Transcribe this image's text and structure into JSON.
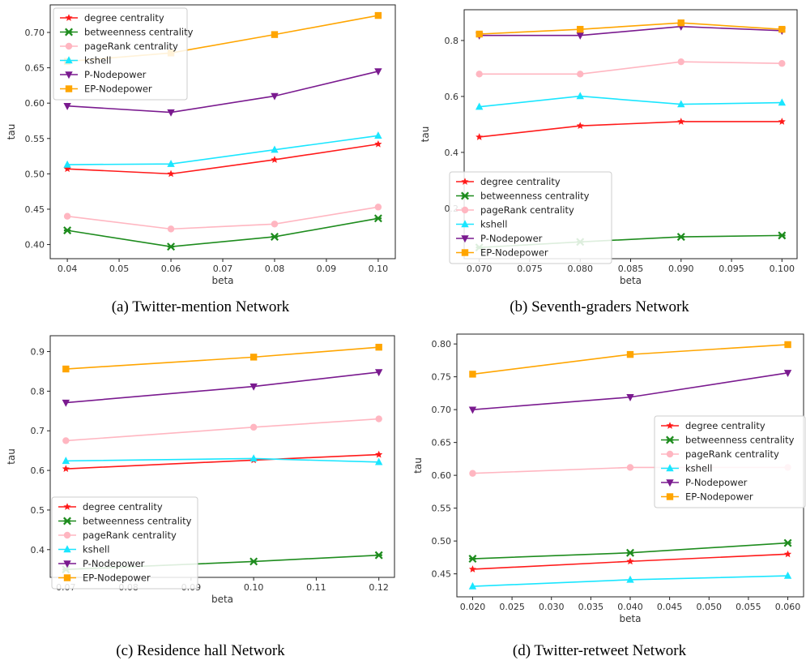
{
  "figure": {
    "captions": [
      "(a) Twitter-mention Network",
      "(b) Seventh-graders Network",
      "(c) Residence hall Network",
      "(d) Twitter-retweet Network"
    ]
  },
  "series_style": [
    {
      "name": "degree centrality",
      "color": "#ff1a1a",
      "marker": "star"
    },
    {
      "name": "betweenness centrality",
      "color": "#1e8c1e",
      "marker": "x"
    },
    {
      "name": "pageRank centrality",
      "color": "#ffb6c1",
      "marker": "circle"
    },
    {
      "name": "kshell",
      "color": "#1ae6ff",
      "marker": "triangle-up"
    },
    {
      "name": "P-Nodepower",
      "color": "#7a1a8f",
      "marker": "triangle-down"
    },
    {
      "name": "EP-Nodepower",
      "color": "#ffa500",
      "marker": "square"
    }
  ],
  "chart_data": [
    {
      "type": "line",
      "caption": "(a) Twitter-mention Network",
      "xlabel": "beta",
      "ylabel": "tau",
      "x": [
        0.04,
        0.06,
        0.08,
        0.1
      ],
      "xticks": [
        "0.04",
        "0.05",
        "0.06",
        "0.07",
        "0.08",
        "0.09",
        "0.10"
      ],
      "xtick_values": [
        0.04,
        0.05,
        0.06,
        0.07,
        0.08,
        0.09,
        0.1
      ],
      "yticks": [
        "0.40",
        "0.45",
        "0.50",
        "0.55",
        "0.60",
        "0.65",
        "0.70"
      ],
      "ytick_values": [
        0.4,
        0.45,
        0.5,
        0.55,
        0.6,
        0.65,
        0.7
      ],
      "xlim": [
        0.0367,
        0.1033
      ],
      "ylim": [
        0.38,
        0.739
      ],
      "legend": "top-left",
      "series": [
        {
          "name": "degree centrality",
          "values": [
            0.507,
            0.5,
            0.52,
            0.542
          ]
        },
        {
          "name": "betweenness centrality",
          "values": [
            0.42,
            0.397,
            0.411,
            0.437
          ]
        },
        {
          "name": "pageRank centrality",
          "values": [
            0.44,
            0.422,
            0.429,
            0.453
          ]
        },
        {
          "name": "kshell",
          "values": [
            0.513,
            0.514,
            0.534,
            0.554
          ]
        },
        {
          "name": "P-Nodepower",
          "values": [
            0.596,
            0.587,
            0.61,
            0.645
          ]
        },
        {
          "name": "EP-Nodepower",
          "values": [
            0.659,
            0.671,
            0.697,
            0.724
          ]
        }
      ]
    },
    {
      "type": "line",
      "caption": "(b) Seventh-graders Network",
      "xlabel": "beta",
      "ylabel": "tau",
      "x": [
        0.07,
        0.08,
        0.09,
        0.1
      ],
      "xticks": [
        "0.070",
        "0.075",
        "0.080",
        "0.085",
        "0.090",
        "0.095",
        "0.100"
      ],
      "xtick_values": [
        0.07,
        0.075,
        0.08,
        0.085,
        0.09,
        0.095,
        0.1
      ],
      "yticks": [
        "0.2",
        "0.4",
        "0.6",
        "0.8"
      ],
      "ytick_values": [
        0.2,
        0.4,
        0.6,
        0.8
      ],
      "xlim": [
        0.0685,
        0.1015
      ],
      "ylim": [
        0.02,
        0.91
      ],
      "legend": "lower-left",
      "series": [
        {
          "name": "degree centrality",
          "values": [
            0.455,
            0.495,
            0.51,
            0.51
          ]
        },
        {
          "name": "betweenness centrality",
          "values": [
            0.06,
            0.08,
            0.098,
            0.103
          ]
        },
        {
          "name": "pageRank centrality",
          "values": [
            0.68,
            0.68,
            0.724,
            0.718
          ]
        },
        {
          "name": "kshell",
          "values": [
            0.563,
            0.601,
            0.572,
            0.578
          ]
        },
        {
          "name": "P-Nodepower",
          "values": [
            0.818,
            0.818,
            0.85,
            0.835
          ]
        },
        {
          "name": "EP-Nodepower",
          "values": [
            0.823,
            0.84,
            0.863,
            0.84
          ]
        }
      ]
    },
    {
      "type": "line",
      "caption": "(c) Residence hall Network",
      "xlabel": "beta",
      "ylabel": "tau",
      "x": [
        0.07,
        0.1,
        0.12
      ],
      "xticks": [
        "0.07",
        "0.08",
        "0.09",
        "0.10",
        "0.11",
        "0.12"
      ],
      "xtick_values": [
        0.07,
        0.08,
        0.09,
        0.1,
        0.11,
        0.12
      ],
      "yticks": [
        "0.4",
        "0.5",
        "0.6",
        "0.7",
        "0.8",
        "0.9"
      ],
      "ytick_values": [
        0.4,
        0.5,
        0.6,
        0.7,
        0.8,
        0.9
      ],
      "xlim": [
        0.0675,
        0.1225
      ],
      "ylim": [
        0.33,
        0.94
      ],
      "legend": "lower-left",
      "series": [
        {
          "name": "degree centrality",
          "values": [
            0.604,
            0.626,
            0.64
          ]
        },
        {
          "name": "betweenness centrality",
          "values": [
            0.35,
            0.37,
            0.386
          ]
        },
        {
          "name": "pageRank centrality",
          "values": [
            0.675,
            0.709,
            0.73
          ]
        },
        {
          "name": "kshell",
          "values": [
            0.624,
            0.63,
            0.621
          ]
        },
        {
          "name": "P-Nodepower",
          "values": [
            0.771,
            0.812,
            0.848
          ]
        },
        {
          "name": "EP-Nodepower",
          "values": [
            0.856,
            0.886,
            0.911
          ]
        }
      ]
    },
    {
      "type": "line",
      "caption": "(d) Twitter-retweet Network",
      "xlabel": "beta",
      "ylabel": "tau",
      "x": [
        0.02,
        0.04,
        0.06
      ],
      "xticks": [
        "0.020",
        "0.025",
        "0.030",
        "0.035",
        "0.040",
        "0.045",
        "0.050",
        "0.055",
        "0.060"
      ],
      "xtick_values": [
        0.02,
        0.025,
        0.03,
        0.035,
        0.04,
        0.045,
        0.05,
        0.055,
        0.06
      ],
      "yticks": [
        "0.45",
        "0.50",
        "0.55",
        "0.60",
        "0.65",
        "0.70",
        "0.75",
        "0.80"
      ],
      "ytick_values": [
        0.45,
        0.5,
        0.55,
        0.6,
        0.65,
        0.7,
        0.75,
        0.8
      ],
      "xlim": [
        0.018,
        0.062
      ],
      "ylim": [
        0.415,
        0.815
      ],
      "legend": "center-right",
      "series": [
        {
          "name": "degree centrality",
          "values": [
            0.457,
            0.469,
            0.48
          ]
        },
        {
          "name": "betweenness centrality",
          "values": [
            0.473,
            0.482,
            0.497
          ]
        },
        {
          "name": "pageRank centrality",
          "values": [
            0.603,
            0.612,
            0.612
          ]
        },
        {
          "name": "kshell",
          "values": [
            0.431,
            0.441,
            0.447
          ]
        },
        {
          "name": "P-Nodepower",
          "values": [
            0.7,
            0.719,
            0.756
          ]
        },
        {
          "name": "EP-Nodepower",
          "values": [
            0.754,
            0.784,
            0.799
          ]
        }
      ]
    }
  ]
}
